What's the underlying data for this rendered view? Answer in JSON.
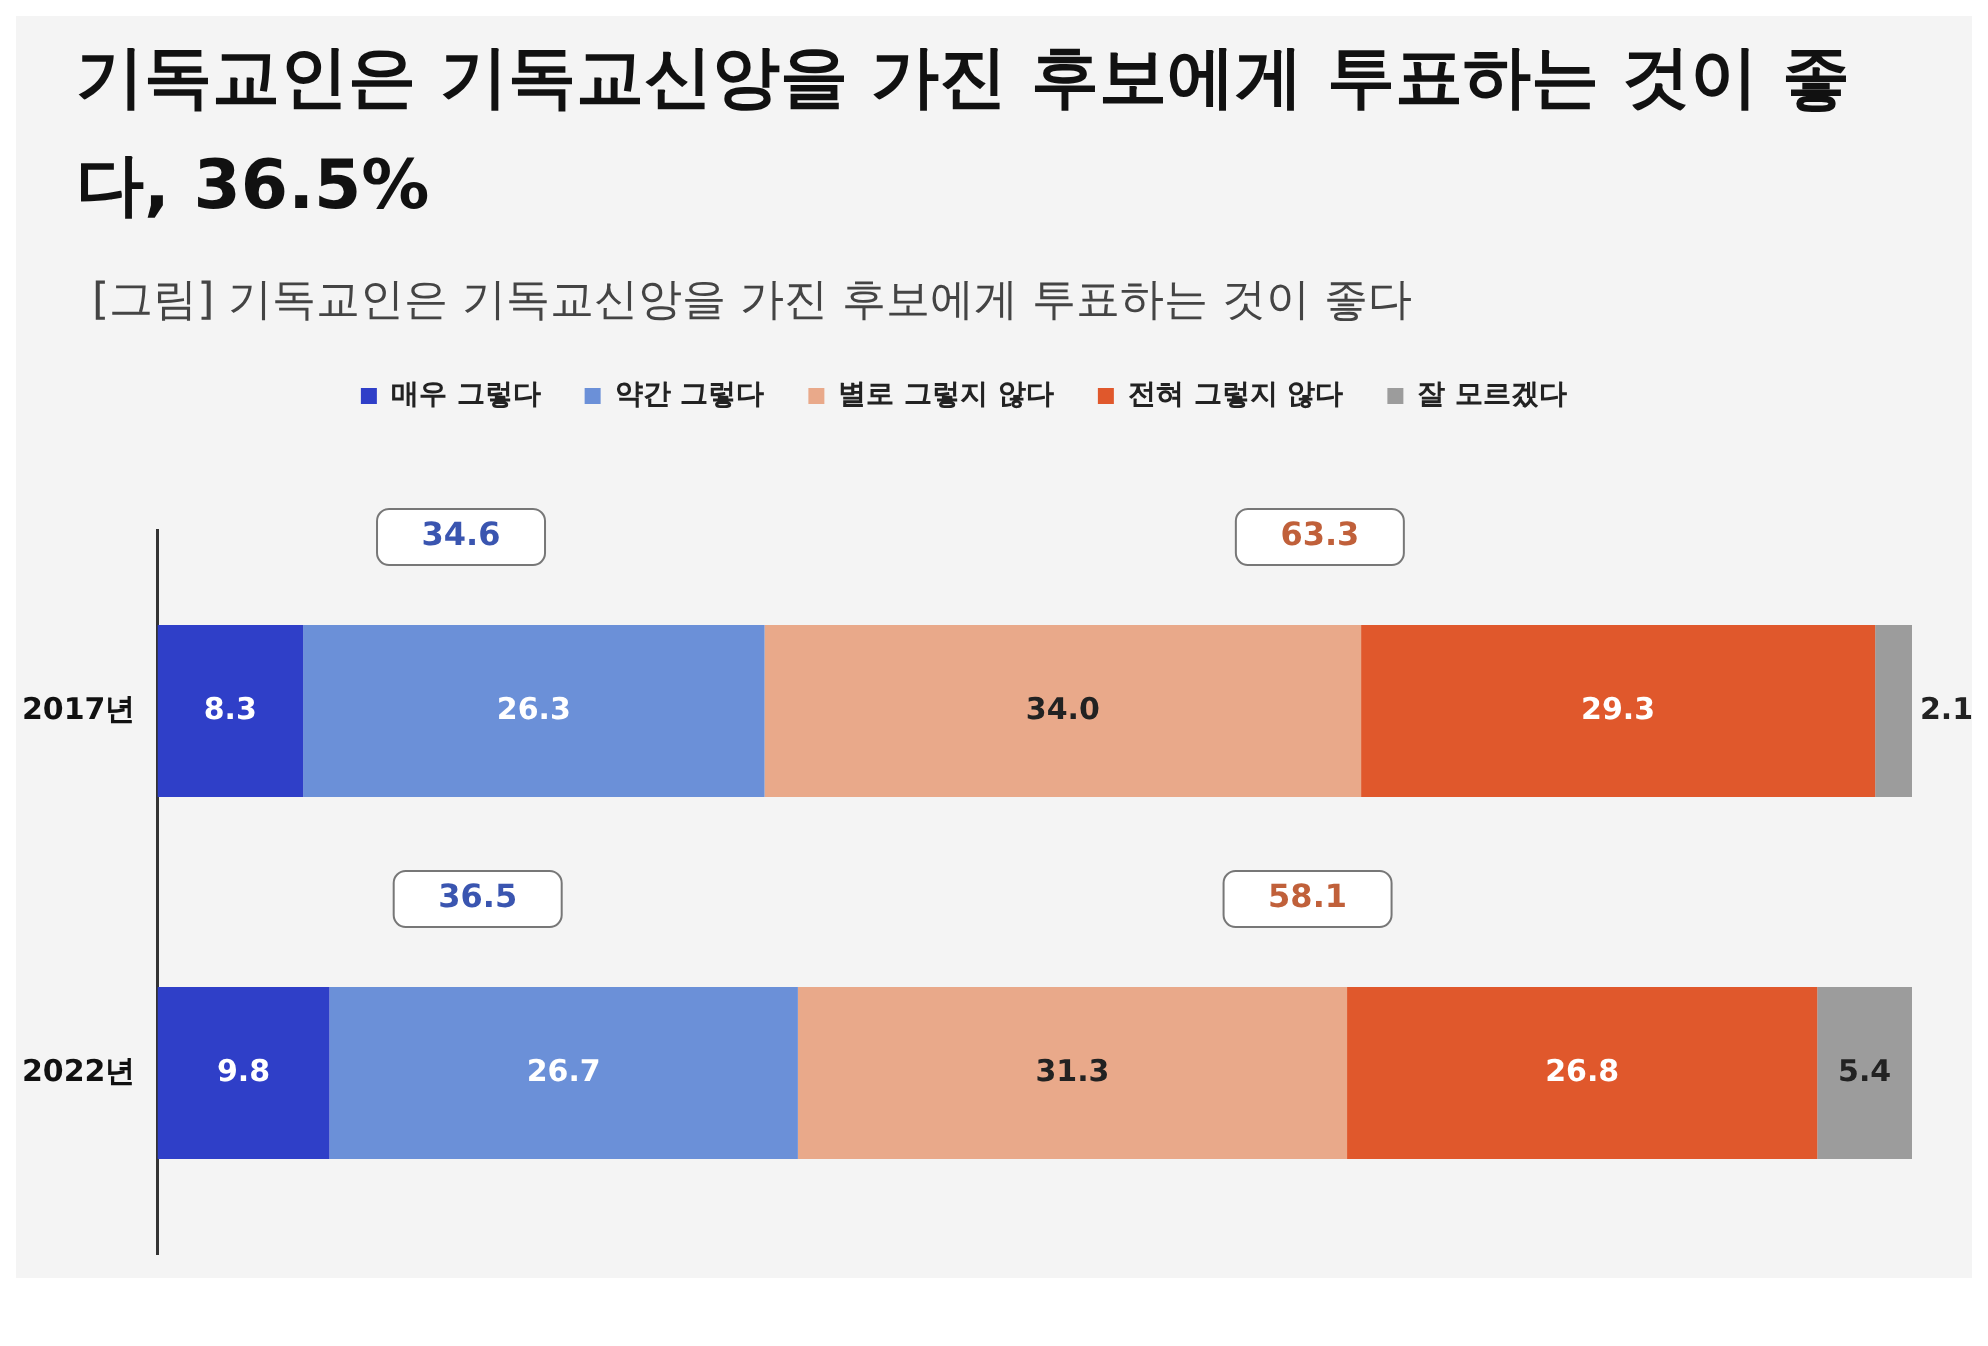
{
  "chart_data": {
    "type": "bar",
    "orientation": "horizontal",
    "stacked": true,
    "title": "기독교인은 기독교신앙을 가진 후보에게 투표하는 것이 좋다, 36.5%",
    "subtitle": "[그림] 기독교인은 기독교신앙을 가진 후보에게 투표하는 것이 좋다",
    "categories": [
      "2017년",
      "2022년"
    ],
    "series": [
      {
        "name": "매우 그렇다",
        "color": "#2f3fc8",
        "values": [
          8.3,
          9.8
        ],
        "value_labels": [
          "8.3",
          "9.8"
        ]
      },
      {
        "name": "약간 그렇다",
        "color": "#6b90d8",
        "values": [
          26.3,
          26.7
        ],
        "value_labels": [
          "26.3",
          "26.7"
        ]
      },
      {
        "name": "별로 그렇지 않다",
        "color": "#e9a98a",
        "values": [
          34.0,
          31.3
        ],
        "value_labels": [
          "34.0",
          "31.3"
        ]
      },
      {
        "name": "전혀 그렇지 않다",
        "color": "#e0582c",
        "values": [
          29.3,
          26.8
        ],
        "value_labels": [
          "29.3",
          "26.8"
        ]
      },
      {
        "name": "잘 모르겠다",
        "color": "#9c9c9c",
        "values": [
          2.1,
          5.4
        ],
        "value_labels": [
          "2.1",
          "5.4"
        ]
      }
    ],
    "annotations": [
      "34.6",
      "63.3",
      "36.5",
      "58.1"
    ],
    "legend": "top",
    "grid": false,
    "tick_labels": "y"
  }
}
